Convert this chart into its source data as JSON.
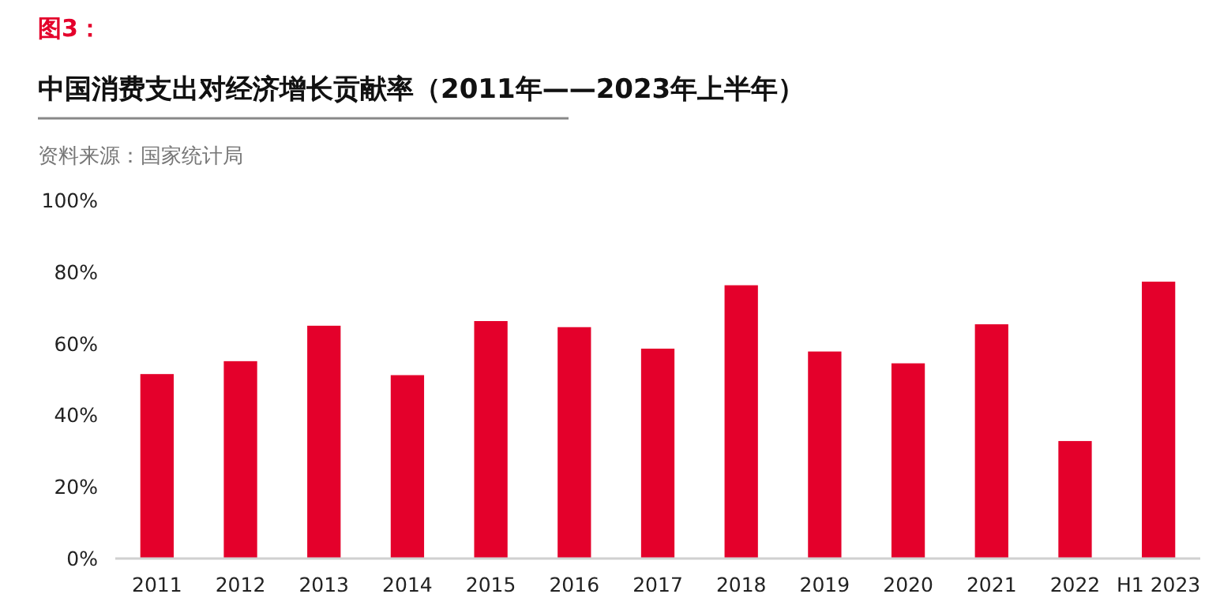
{
  "chart_data": {
    "type": "bar",
    "subtitle": "图3：",
    "title": "中国消费支出对经济增长贡献率（2011年——2023年上半年）",
    "annotations": [
      "资料来源：国家统计局"
    ],
    "categories": [
      "2011",
      "2012",
      "2013",
      "2014",
      "2015",
      "2016",
      "2017",
      "2018",
      "2019",
      "2020",
      "2021",
      "2022",
      "H1 2023"
    ],
    "values": [
      51.5,
      55.1,
      65.0,
      51.2,
      66.3,
      64.6,
      58.6,
      76.3,
      57.8,
      54.5,
      65.4,
      32.8,
      77.3
    ],
    "color": "#e4002b",
    "ylim": [
      0,
      100
    ],
    "yticks": [
      {
        "value": 0,
        "label": "0%"
      },
      {
        "value": 20,
        "label": "20%"
      },
      {
        "value": 40,
        "label": "40%"
      },
      {
        "value": 60,
        "label": "60%"
      },
      {
        "value": 80,
        "label": "80%"
      },
      {
        "value": 100,
        "label": "100%"
      }
    ],
    "grid": false
  }
}
